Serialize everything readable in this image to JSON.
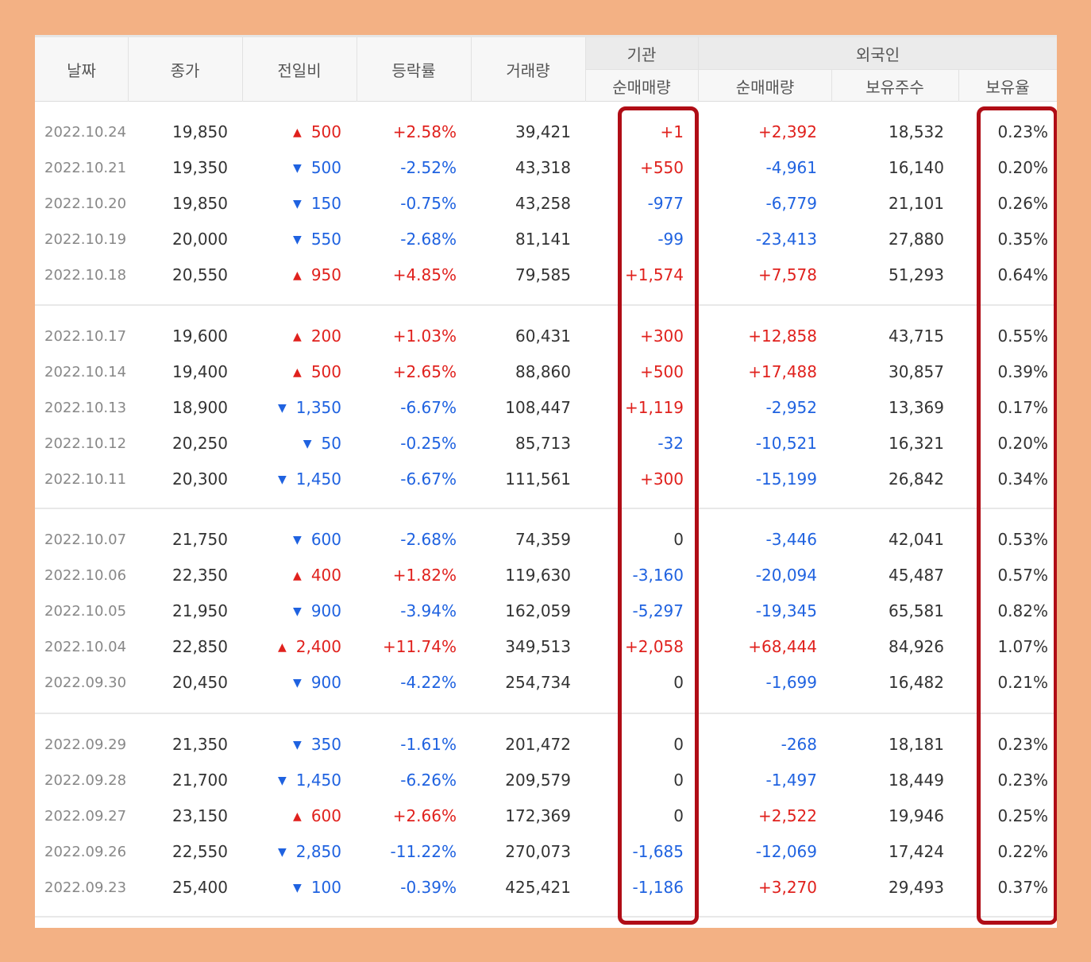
{
  "table": {
    "headers": {
      "date": "날짜",
      "close": "종가",
      "change": "전일비",
      "rate": "등락률",
      "volume": "거래량",
      "inst_group": "기관",
      "inst_net": "순매매량",
      "foreign_group": "외국인",
      "foreign_net": "순매매량",
      "foreign_shares": "보유주수",
      "foreign_ratio": "보유율"
    },
    "groups": [
      [
        {
          "date": "2022.10.24",
          "close": "19,850",
          "dir": "up",
          "change": "500",
          "rate": "+2.58%",
          "volume": "39,421",
          "inst": "+1",
          "inst_dir": "up",
          "foreign": "+2,392",
          "foreign_dir": "up",
          "shares": "18,532",
          "ratio": "0.23%"
        },
        {
          "date": "2022.10.21",
          "close": "19,350",
          "dir": "down",
          "change": "500",
          "rate": "-2.52%",
          "volume": "43,318",
          "inst": "+550",
          "inst_dir": "up",
          "foreign": "-4,961",
          "foreign_dir": "down",
          "shares": "16,140",
          "ratio": "0.20%"
        },
        {
          "date": "2022.10.20",
          "close": "19,850",
          "dir": "down",
          "change": "150",
          "rate": "-0.75%",
          "volume": "43,258",
          "inst": "-977",
          "inst_dir": "down",
          "foreign": "-6,779",
          "foreign_dir": "down",
          "shares": "21,101",
          "ratio": "0.26%"
        },
        {
          "date": "2022.10.19",
          "close": "20,000",
          "dir": "down",
          "change": "550",
          "rate": "-2.68%",
          "volume": "81,141",
          "inst": "-99",
          "inst_dir": "down",
          "foreign": "-23,413",
          "foreign_dir": "down",
          "shares": "27,880",
          "ratio": "0.35%"
        },
        {
          "date": "2022.10.18",
          "close": "20,550",
          "dir": "up",
          "change": "950",
          "rate": "+4.85%",
          "volume": "79,585",
          "inst": "+1,574",
          "inst_dir": "up",
          "foreign": "+7,578",
          "foreign_dir": "up",
          "shares": "51,293",
          "ratio": "0.64%"
        }
      ],
      [
        {
          "date": "2022.10.17",
          "close": "19,600",
          "dir": "up",
          "change": "200",
          "rate": "+1.03%",
          "volume": "60,431",
          "inst": "+300",
          "inst_dir": "up",
          "foreign": "+12,858",
          "foreign_dir": "up",
          "shares": "43,715",
          "ratio": "0.55%"
        },
        {
          "date": "2022.10.14",
          "close": "19,400",
          "dir": "up",
          "change": "500",
          "rate": "+2.65%",
          "volume": "88,860",
          "inst": "+500",
          "inst_dir": "up",
          "foreign": "+17,488",
          "foreign_dir": "up",
          "shares": "30,857",
          "ratio": "0.39%"
        },
        {
          "date": "2022.10.13",
          "close": "18,900",
          "dir": "down",
          "change": "1,350",
          "rate": "-6.67%",
          "volume": "108,447",
          "inst": "+1,119",
          "inst_dir": "up",
          "foreign": "-2,952",
          "foreign_dir": "down",
          "shares": "13,369",
          "ratio": "0.17%"
        },
        {
          "date": "2022.10.12",
          "close": "20,250",
          "dir": "down",
          "change": "50",
          "rate": "-0.25%",
          "volume": "85,713",
          "inst": "-32",
          "inst_dir": "down",
          "foreign": "-10,521",
          "foreign_dir": "down",
          "shares": "16,321",
          "ratio": "0.20%"
        },
        {
          "date": "2022.10.11",
          "close": "20,300",
          "dir": "down",
          "change": "1,450",
          "rate": "-6.67%",
          "volume": "111,561",
          "inst": "+300",
          "inst_dir": "up",
          "foreign": "-15,199",
          "foreign_dir": "down",
          "shares": "26,842",
          "ratio": "0.34%"
        }
      ],
      [
        {
          "date": "2022.10.07",
          "close": "21,750",
          "dir": "down",
          "change": "600",
          "rate": "-2.68%",
          "volume": "74,359",
          "inst": "0",
          "inst_dir": "zero",
          "foreign": "-3,446",
          "foreign_dir": "down",
          "shares": "42,041",
          "ratio": "0.53%"
        },
        {
          "date": "2022.10.06",
          "close": "22,350",
          "dir": "up",
          "change": "400",
          "rate": "+1.82%",
          "volume": "119,630",
          "inst": "-3,160",
          "inst_dir": "down",
          "foreign": "-20,094",
          "foreign_dir": "down",
          "shares": "45,487",
          "ratio": "0.57%"
        },
        {
          "date": "2022.10.05",
          "close": "21,950",
          "dir": "down",
          "change": "900",
          "rate": "-3.94%",
          "volume": "162,059",
          "inst": "-5,297",
          "inst_dir": "down",
          "foreign": "-19,345",
          "foreign_dir": "down",
          "shares": "65,581",
          "ratio": "0.82%"
        },
        {
          "date": "2022.10.04",
          "close": "22,850",
          "dir": "up",
          "change": "2,400",
          "rate": "+11.74%",
          "volume": "349,513",
          "inst": "+2,058",
          "inst_dir": "up",
          "foreign": "+68,444",
          "foreign_dir": "up",
          "shares": "84,926",
          "ratio": "1.07%"
        },
        {
          "date": "2022.09.30",
          "close": "20,450",
          "dir": "down",
          "change": "900",
          "rate": "-4.22%",
          "volume": "254,734",
          "inst": "0",
          "inst_dir": "zero",
          "foreign": "-1,699",
          "foreign_dir": "down",
          "shares": "16,482",
          "ratio": "0.21%"
        }
      ],
      [
        {
          "date": "2022.09.29",
          "close": "21,350",
          "dir": "down",
          "change": "350",
          "rate": "-1.61%",
          "volume": "201,472",
          "inst": "0",
          "inst_dir": "zero",
          "foreign": "-268",
          "foreign_dir": "down",
          "shares": "18,181",
          "ratio": "0.23%"
        },
        {
          "date": "2022.09.28",
          "close": "21,700",
          "dir": "down",
          "change": "1,450",
          "rate": "-6.26%",
          "volume": "209,579",
          "inst": "0",
          "inst_dir": "zero",
          "foreign": "-1,497",
          "foreign_dir": "down",
          "shares": "18,449",
          "ratio": "0.23%"
        },
        {
          "date": "2022.09.27",
          "close": "23,150",
          "dir": "up",
          "change": "600",
          "rate": "+2.66%",
          "volume": "172,369",
          "inst": "0",
          "inst_dir": "zero",
          "foreign": "+2,522",
          "foreign_dir": "up",
          "shares": "19,946",
          "ratio": "0.25%"
        },
        {
          "date": "2022.09.26",
          "close": "22,550",
          "dir": "down",
          "change": "2,850",
          "rate": "-11.22%",
          "volume": "270,073",
          "inst": "-1,685",
          "inst_dir": "down",
          "foreign": "-12,069",
          "foreign_dir": "down",
          "shares": "17,424",
          "ratio": "0.22%"
        },
        {
          "date": "2022.09.23",
          "close": "25,400",
          "dir": "down",
          "change": "100",
          "rate": "-0.39%",
          "volume": "425,421",
          "inst": "-1,186",
          "inst_dir": "down",
          "foreign": "+3,270",
          "foreign_dir": "up",
          "shares": "29,493",
          "ratio": "0.37%"
        }
      ]
    ]
  },
  "icons": {
    "up": "triangle-up-icon",
    "down": "triangle-down-icon"
  },
  "colors": {
    "up": "#e0211d",
    "down": "#1f62e0",
    "highlight": "#b00d16",
    "frame": "#f3b184"
  }
}
